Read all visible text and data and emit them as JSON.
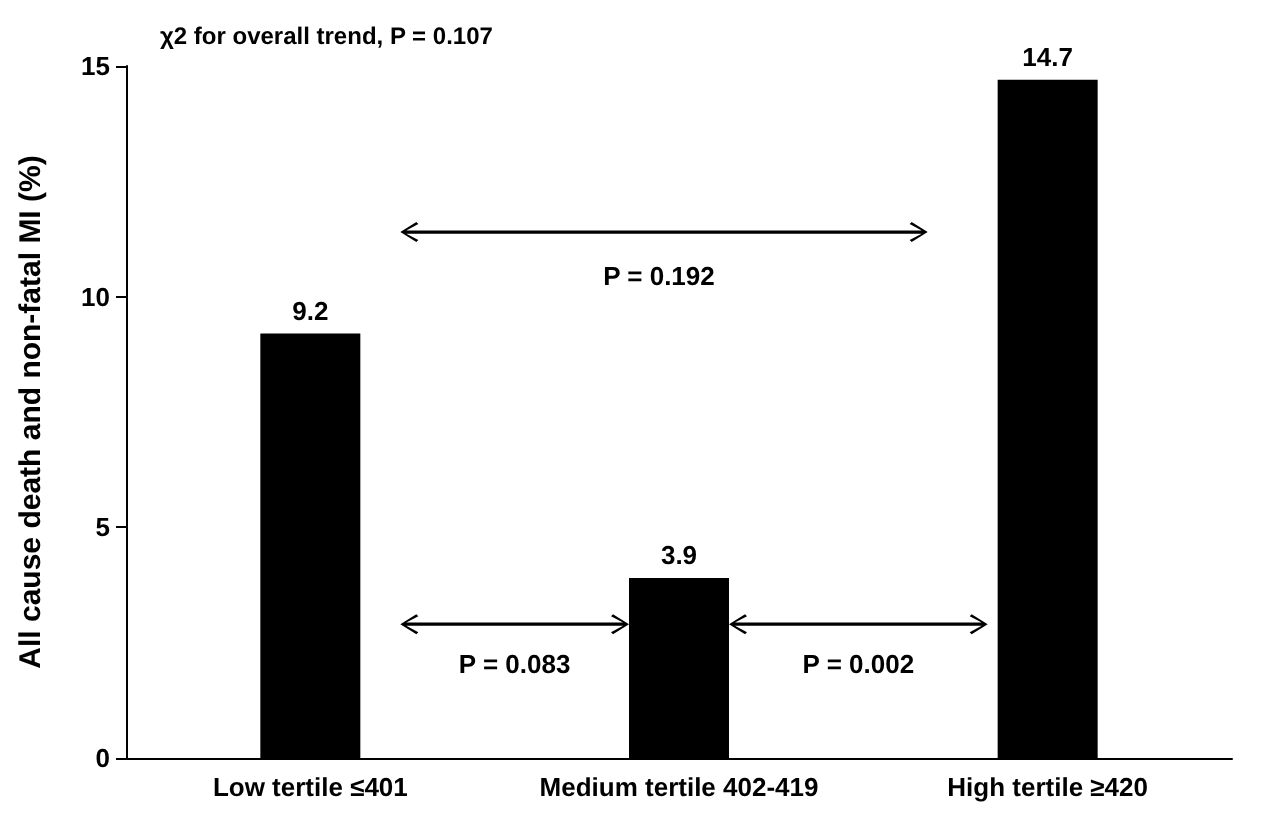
{
  "chart_data": {
    "type": "bar",
    "ylabel": "All cause death and non-fatal MI (%)",
    "categories": [
      "Low tertile ≤401",
      "Medium tertile 402-419",
      "High tertile ≥420"
    ],
    "values": [
      9.2,
      3.9,
      14.7
    ],
    "color": "#000000",
    "data_labels": true,
    "ylim": [
      0,
      15
    ],
    "yticks": [
      0,
      5,
      10,
      15
    ],
    "grid": false,
    "annotations": [
      "χ2 for overall trend, P = 0.107",
      "P = 0.192",
      "P = 0.083",
      "P = 0.002"
    ]
  }
}
